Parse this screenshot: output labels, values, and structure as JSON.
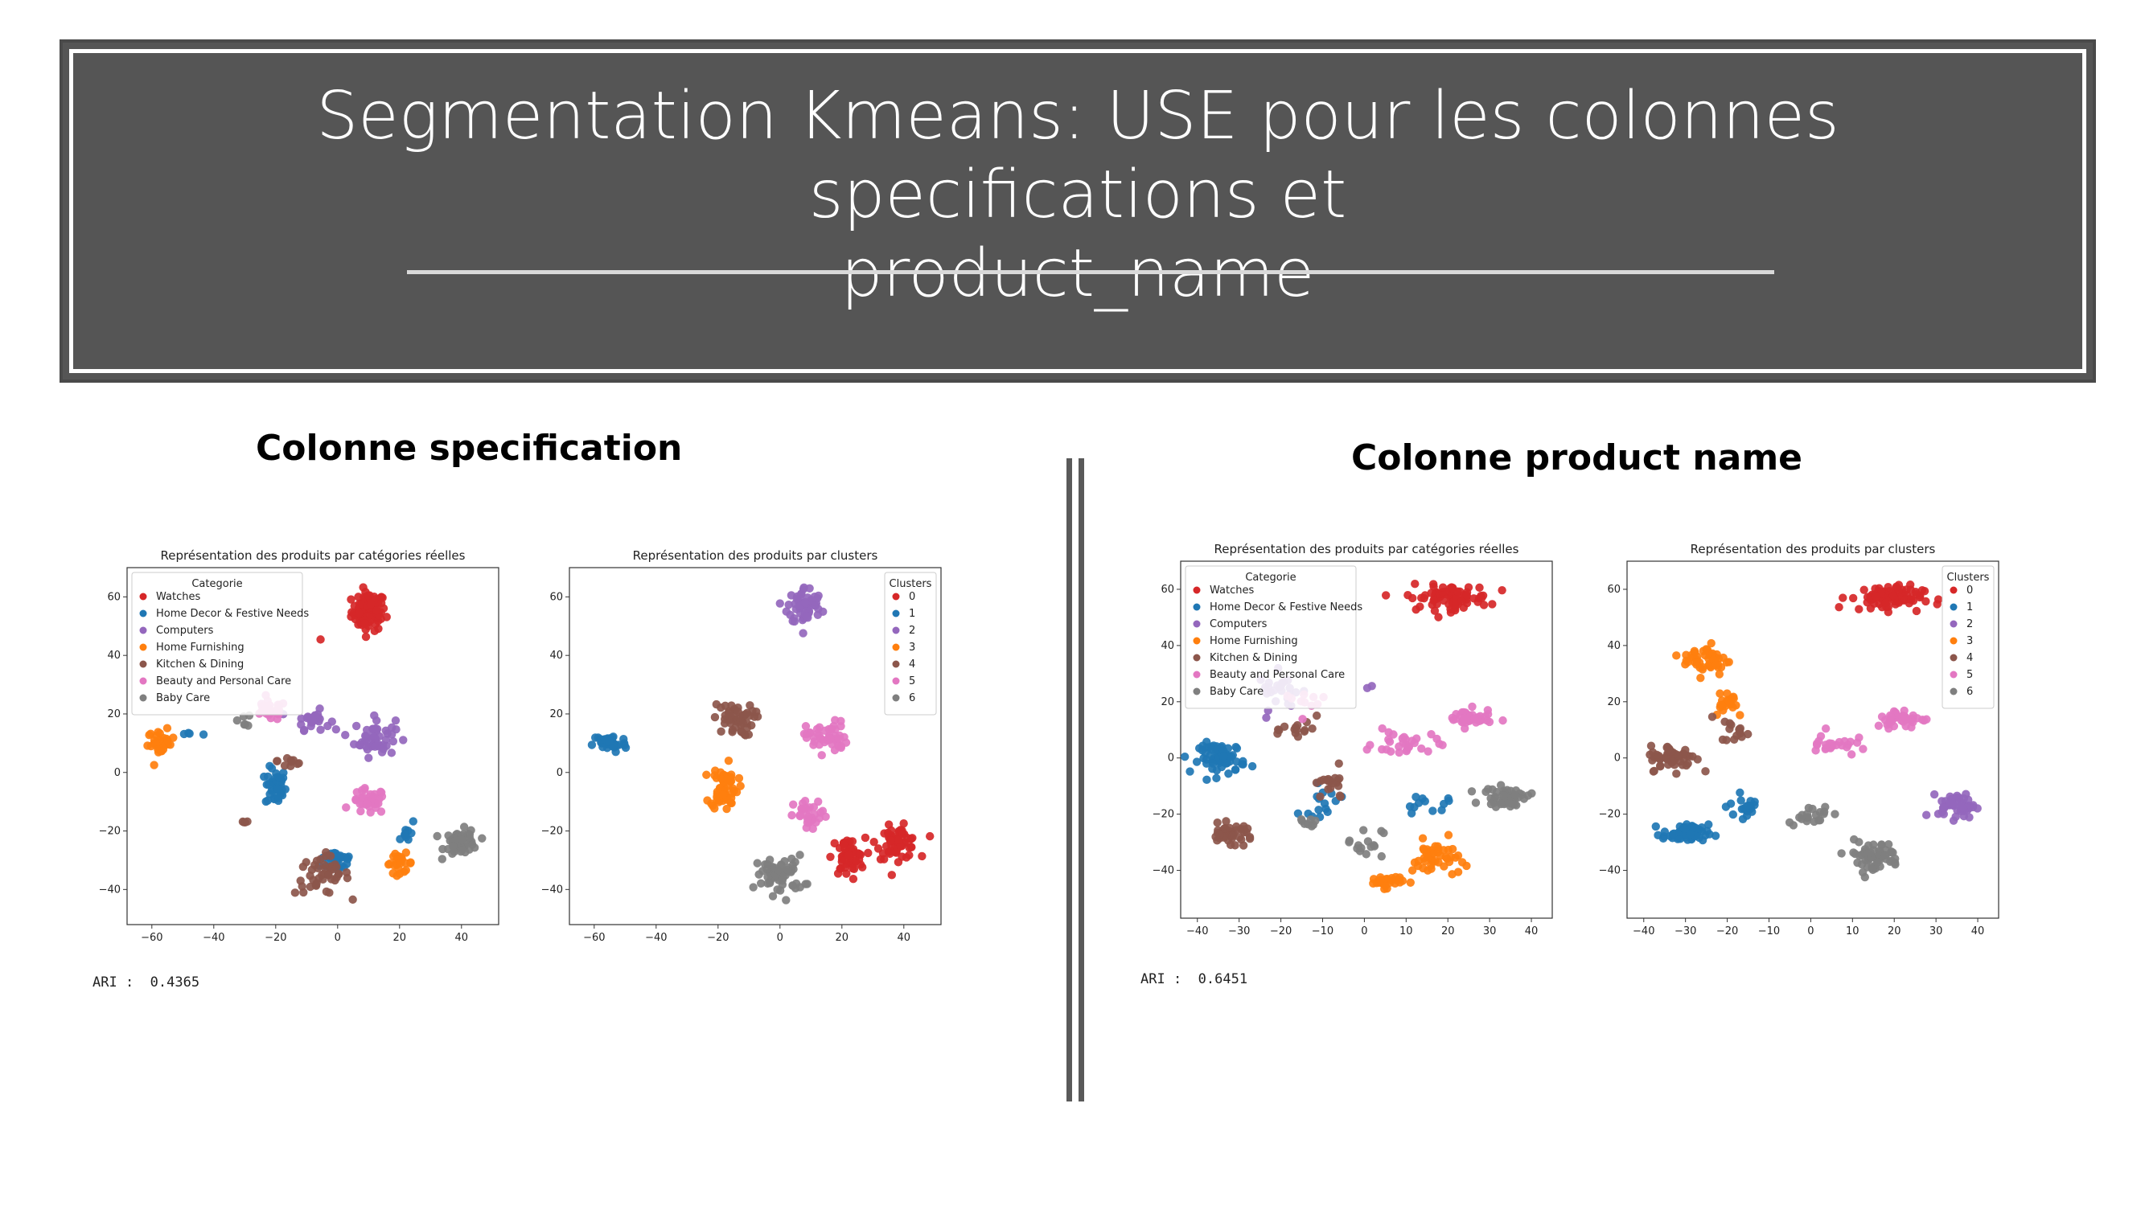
{
  "banner": {
    "title_line1": "Segmentation Kmeans: USE pour les colonnes specifications et",
    "title_line2": "product_name"
  },
  "sections": {
    "left_title": "Colonne specification",
    "right_title": "Colonne product name",
    "left_ari": "ARI :  0.4365",
    "right_ari": "ARI :  0.6451"
  },
  "palette": {
    "red": "#d62728",
    "blue": "#1f77b4",
    "purple": "#9467bd",
    "orange": "#ff7f0e",
    "brown": "#8c564b",
    "pink": "#e377c2",
    "gray": "#7f7f7f"
  },
  "chart_data": [
    {
      "type": "scatter",
      "panel": "spec-categories",
      "title": "Représentation des produits par catégories réelles",
      "legend": {
        "title": "Categorie",
        "placement": "upper-left",
        "entries": [
          "Watches",
          "Home Decor & Festive Needs",
          "Computers",
          "Home Furnishing",
          "Kitchen & Dining",
          "Beauty and Personal Care",
          "Baby Care"
        ]
      },
      "xticks": [
        "−60",
        "−40",
        "−20",
        "0",
        "20",
        "40"
      ],
      "yticks": [
        "60",
        "40",
        "20",
        "0",
        "−20",
        "−40"
      ],
      "xlim": [
        -68,
        52
      ],
      "ylim": [
        -52,
        70
      ],
      "series": [
        {
          "name": "Watches",
          "color": "#d62728",
          "clusters": [
            [
              10,
              55,
              5,
              6,
              90
            ],
            [
              -5,
              45,
              1,
              1,
              1
            ]
          ]
        },
        {
          "name": "Home Decor & Festive Needs",
          "color": "#1f77b4",
          "clusters": [
            [
              -20,
              -5,
              3,
              6,
              40
            ],
            [
              0,
              -30,
              5,
              4,
              30
            ],
            [
              22,
              -20,
              3,
              4,
              10
            ],
            [
              -48,
              13,
              5,
              1,
              4
            ]
          ]
        },
        {
          "name": "Computers",
          "color": "#9467bd",
          "clusters": [
            [
              -8,
              18,
              5,
              3,
              25
            ],
            [
              12,
              12,
              6,
              6,
              50
            ]
          ]
        },
        {
          "name": "Home Furnishing",
          "color": "#ff7f0e",
          "clusters": [
            [
              -57,
              10,
              4,
              4,
              30
            ],
            [
              20,
              -31,
              4,
              3,
              25
            ]
          ]
        },
        {
          "name": "Kitchen & Dining",
          "color": "#8c564b",
          "clusters": [
            [
              -5,
              -35,
              8,
              6,
              45
            ],
            [
              -30,
              -17,
              2,
              1,
              4
            ],
            [
              -15,
              4,
              4,
              3,
              10
            ]
          ]
        },
        {
          "name": "Beauty and Personal Care",
          "color": "#e377c2",
          "clusters": [
            [
              -22,
              21,
              5,
              3,
              30
            ],
            [
              10,
              -10,
              5,
              4,
              35
            ]
          ]
        },
        {
          "name": "Baby Care",
          "color": "#7f7f7f",
          "clusters": [
            [
              40,
              -24,
              5,
              4,
              50
            ],
            [
              -30,
              18,
              2,
              2,
              6
            ]
          ]
        }
      ]
    },
    {
      "type": "scatter",
      "panel": "spec-clusters",
      "title": "Représentation des produits par clusters",
      "legend": {
        "title": "Clusters",
        "placement": "upper-right",
        "entries": [
          "0",
          "1",
          "2",
          "3",
          "4",
          "5",
          "6"
        ]
      },
      "xticks": [
        "−60",
        "−40",
        "−20",
        "0",
        "20",
        "40"
      ],
      "yticks": [
        "60",
        "40",
        "20",
        "0",
        "−20",
        "−40"
      ],
      "xlim": [
        -68,
        52
      ],
      "ylim": [
        -52,
        70
      ],
      "series": [
        {
          "name": "0",
          "color": "#d62728",
          "clusters": [
            [
              38,
              -24,
              6,
              5,
              60
            ],
            [
              22,
              -29,
              5,
              6,
              50
            ]
          ]
        },
        {
          "name": "1",
          "color": "#1f77b4",
          "clusters": [
            [
              -55,
              10,
              5,
              3,
              40
            ]
          ]
        },
        {
          "name": "2",
          "color": "#9467bd",
          "clusters": [
            [
              8,
              57,
              5,
              6,
              60
            ]
          ]
        },
        {
          "name": "3",
          "color": "#ff7f0e",
          "clusters": [
            [
              -18,
              -5,
              4,
              7,
              60
            ]
          ]
        },
        {
          "name": "4",
          "color": "#8c564b",
          "clusters": [
            [
              -15,
              18,
              6,
              5,
              50
            ]
          ]
        },
        {
          "name": "5",
          "color": "#e377c2",
          "clusters": [
            [
              15,
              12,
              6,
              5,
              50
            ],
            [
              10,
              -15,
              5,
              5,
              30
            ]
          ]
        },
        {
          "name": "6",
          "color": "#7f7f7f",
          "clusters": [
            [
              0,
              -35,
              7,
              6,
              60
            ]
          ]
        }
      ]
    },
    {
      "type": "scatter",
      "panel": "name-categories",
      "title": "Représentation des produits par catégories réelles",
      "legend": {
        "title": "Categorie",
        "placement": "upper-left",
        "entries": [
          "Watches",
          "Home Decor & Festive Needs",
          "Computers",
          "Home Furnishing",
          "Kitchen & Dining",
          "Beauty and Personal Care",
          "Baby Care"
        ]
      },
      "xticks": [
        "−40",
        "−30",
        "−20",
        "−10",
        "0",
        "10",
        "20",
        "30",
        "40"
      ],
      "yticks": [
        "60",
        "40",
        "20",
        "0",
        "−20",
        "−40"
      ],
      "xlim": [
        -44,
        45
      ],
      "ylim": [
        -57,
        70
      ],
      "series": [
        {
          "name": "Watches",
          "color": "#d62728",
          "clusters": [
            [
              20,
              57,
              9,
              4,
              80
            ]
          ]
        },
        {
          "name": "Home Decor & Festive Needs",
          "color": "#1f77b4",
          "clusters": [
            [
              -34,
              0,
              5,
              5,
              70
            ],
            [
              -10,
              -15,
              5,
              5,
              15
            ],
            [
              15,
              -17,
              8,
              3,
              12
            ]
          ]
        },
        {
          "name": "Computers",
          "color": "#9467bd",
          "clusters": [
            [
              -20,
              24,
              5,
              6,
              25
            ],
            [
              2,
              25,
              1,
              1,
              2
            ]
          ]
        },
        {
          "name": "Home Furnishing",
          "color": "#ff7f0e",
          "clusters": [
            [
              5,
              -44,
              4,
              2,
              30
            ],
            [
              17,
              -36,
              5,
              6,
              45
            ]
          ]
        },
        {
          "name": "Kitchen & Dining",
          "color": "#8c564b",
          "clusters": [
            [
              -32,
              -27,
              5,
              3,
              45
            ],
            [
              -15,
              10,
              4,
              4,
              15
            ],
            [
              -8,
              -10,
              4,
              5,
              20
            ]
          ]
        },
        {
          "name": "Beauty and Personal Care",
          "color": "#e377c2",
          "clusters": [
            [
              25,
              14,
              5,
              3,
              40
            ],
            [
              10,
              5,
              7,
              4,
              30
            ],
            [
              -15,
              20,
              5,
              5,
              10
            ]
          ]
        },
        {
          "name": "Baby Care",
          "color": "#7f7f7f",
          "clusters": [
            [
              34,
              -14,
              5,
              3,
              50
            ],
            [
              0,
              -30,
              4,
              5,
              15
            ],
            [
              -13,
              -22,
              3,
              3,
              8
            ]
          ]
        }
      ]
    },
    {
      "type": "scatter",
      "panel": "name-clusters",
      "title": "Représentation des produits par clusters",
      "legend": {
        "title": "Clusters",
        "placement": "upper-right",
        "entries": [
          "0",
          "1",
          "2",
          "3",
          "4",
          "5",
          "6"
        ]
      },
      "xticks": [
        "−40",
        "−30",
        "−20",
        "−10",
        "0",
        "10",
        "20",
        "30",
        "40"
      ],
      "yticks": [
        "60",
        "40",
        "20",
        "0",
        "−20",
        "−40"
      ],
      "xlim": [
        -44,
        45
      ],
      "ylim": [
        -57,
        70
      ],
      "series": [
        {
          "name": "0",
          "color": "#d62728",
          "clusters": [
            [
              18,
              57,
              8,
              4,
              80
            ]
          ]
        },
        {
          "name": "1",
          "color": "#1f77b4",
          "clusters": [
            [
              -30,
              -27,
              5,
              3,
              60
            ],
            [
              -15,
              -17,
              4,
              4,
              20
            ]
          ]
        },
        {
          "name": "2",
          "color": "#9467bd",
          "clusters": [
            [
              35,
              -17,
              4,
              4,
              50
            ]
          ]
        },
        {
          "name": "3",
          "color": "#ff7f0e",
          "clusters": [
            [
              -25,
              35,
              5,
              5,
              50
            ],
            [
              -20,
              20,
              4,
              5,
              20
            ]
          ]
        },
        {
          "name": "4",
          "color": "#8c564b",
          "clusters": [
            [
              -33,
              0,
              5,
              4,
              60
            ],
            [
              -18,
              10,
              3,
              4,
              15
            ]
          ]
        },
        {
          "name": "5",
          "color": "#e377c2",
          "clusters": [
            [
              22,
              14,
              6,
              3,
              40
            ],
            [
              5,
              5,
              5,
              4,
              25
            ]
          ]
        },
        {
          "name": "6",
          "color": "#7f7f7f",
          "clusters": [
            [
              15,
              -35,
              6,
              5,
              60
            ],
            [
              0,
              -20,
              5,
              3,
              20
            ]
          ]
        }
      ]
    }
  ]
}
